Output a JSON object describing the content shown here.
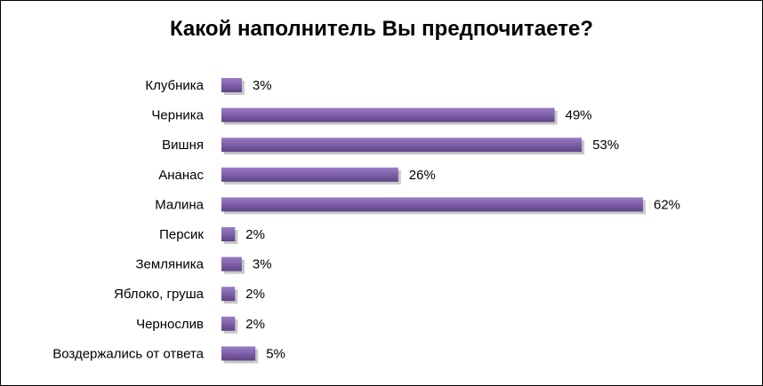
{
  "chart_data": {
    "type": "bar",
    "orientation": "horizontal",
    "title": "Какой наполнитель Вы предпочитаете?",
    "categories": [
      "Клубника",
      "Черника",
      "Вишня",
      "Ананас",
      "Малина",
      "Персик",
      "Земляника",
      "Яблоко, груша",
      "Чернослив",
      "Воздержались от ответа"
    ],
    "values": [
      3,
      49,
      53,
      26,
      62,
      2,
      3,
      2,
      2,
      5
    ],
    "value_labels": [
      "3%",
      "49%",
      "53%",
      "26%",
      "62%",
      "2%",
      "3%",
      "2%",
      "2%",
      "5%"
    ],
    "unit": "%",
    "xlim": [
      0,
      62
    ],
    "grid": false,
    "legend": "none",
    "bar_color": "#7e5fa8",
    "bar_shadow_color": "#9a9a9a"
  }
}
